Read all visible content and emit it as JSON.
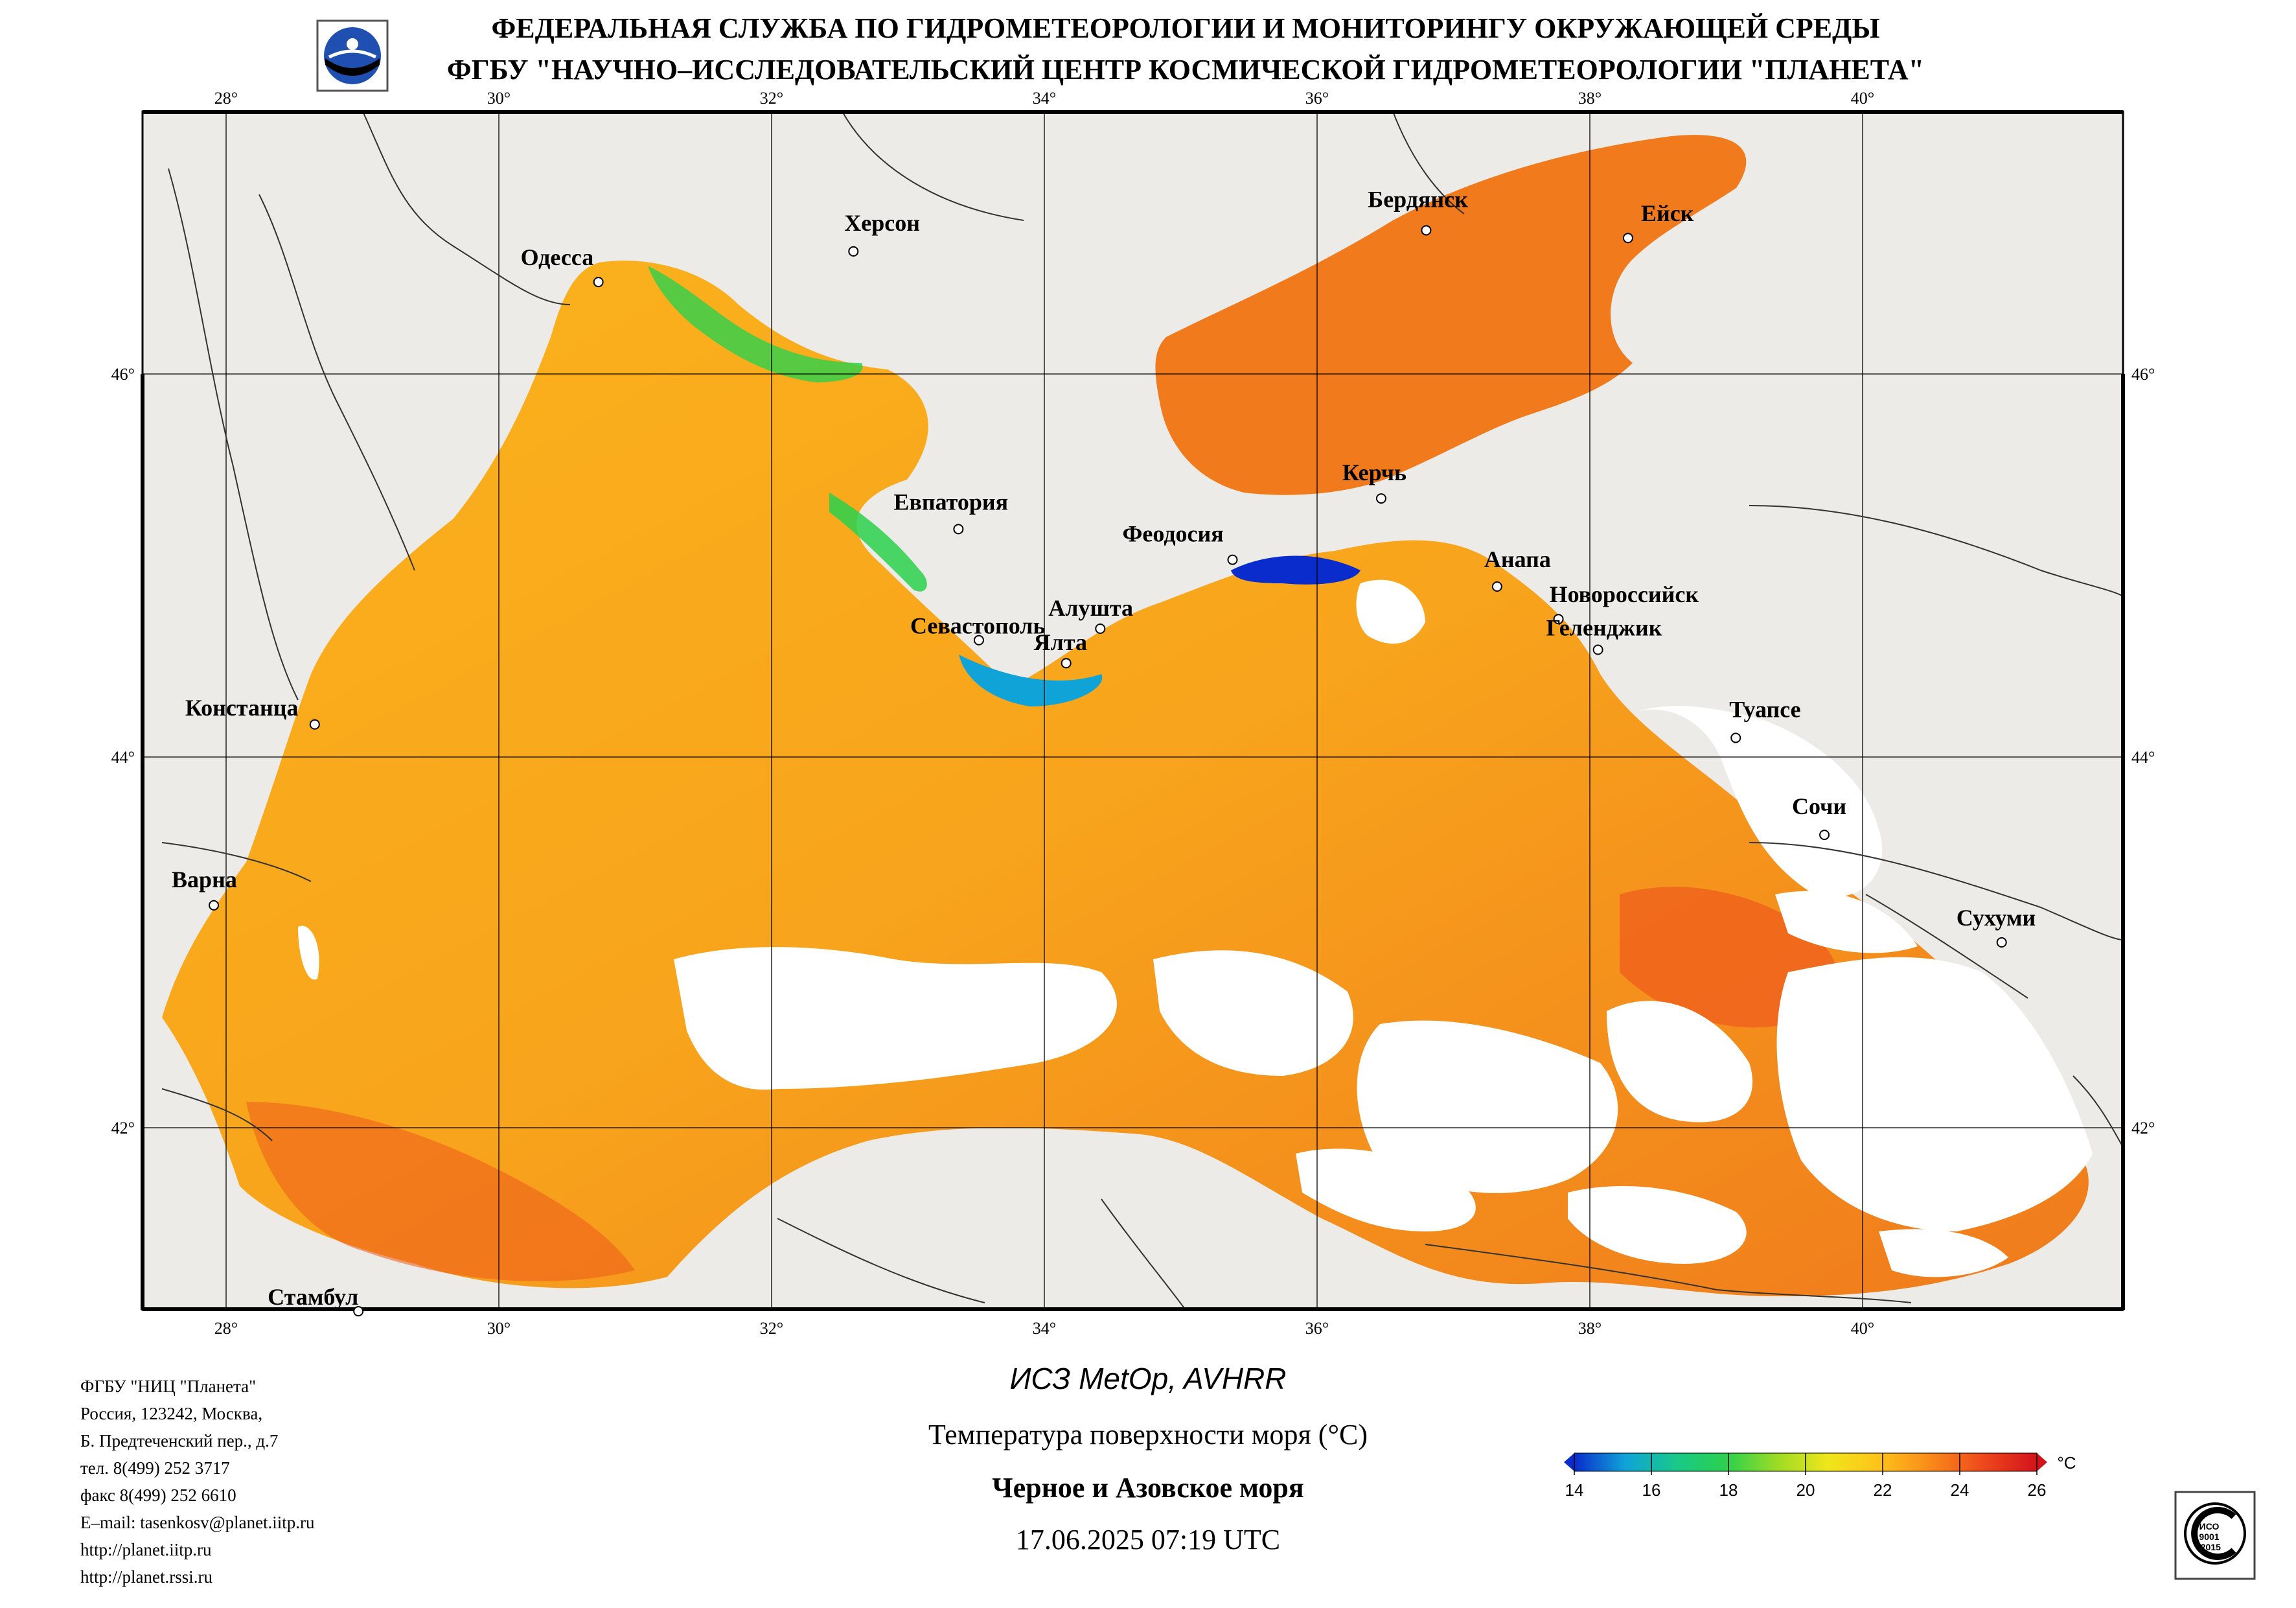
{
  "header": {
    "line1": "ФЕДЕРАЛЬНАЯ СЛУЖБА ПО ГИДРОМЕТЕОРОЛОГИИ И МОНИТОРИНГУ ОКРУЖАЮЩЕЙ СРЕДЫ",
    "line2": "ФГБУ \"НАУЧНО–ИССЛЕДОВАТЕЛЬСКИЙ ЦЕНТР КОСМИЧЕСКОЙ ГИДРОМЕТЕОРОЛОГИИ \"ПЛАНЕТА\"",
    "logo_icon": "planeta-logo-icon"
  },
  "map": {
    "lon_labels": [
      "28°",
      "30°",
      "32°",
      "34°",
      "36°",
      "38°",
      "40°"
    ],
    "lat_labels": [
      "46°",
      "44°",
      "42°"
    ],
    "colors": {
      "land": "#ecebe7",
      "cloud": "#ffffff",
      "border": "#333333",
      "sea_warm": "#f7a21c"
    },
    "cities": [
      {
        "name": "Одесса",
        "lon": 30.73,
        "lat": 46.48
      },
      {
        "name": "Херсон",
        "lon": 32.6,
        "lat": 46.64
      },
      {
        "name": "Бердянск",
        "lon": 36.8,
        "lat": 46.75
      },
      {
        "name": "Ейск",
        "lon": 38.28,
        "lat": 46.71
      },
      {
        "name": "Евпатория",
        "lon": 33.37,
        "lat": 45.19
      },
      {
        "name": "Керчь",
        "lon": 36.47,
        "lat": 45.35
      },
      {
        "name": "Феодосия",
        "lon": 35.38,
        "lat": 45.03
      },
      {
        "name": "Анапа",
        "lon": 37.32,
        "lat": 44.89
      },
      {
        "name": "Новороссийск",
        "lon": 37.77,
        "lat": 44.72
      },
      {
        "name": "Геленджик",
        "lon": 38.06,
        "lat": 44.56
      },
      {
        "name": "Алушта",
        "lon": 34.41,
        "lat": 44.67
      },
      {
        "name": "Севастополь",
        "lon": 33.52,
        "lat": 44.61
      },
      {
        "name": "Ялта",
        "lon": 34.16,
        "lat": 44.49
      },
      {
        "name": "Констанца",
        "lon": 28.65,
        "lat": 44.17
      },
      {
        "name": "Туапсе",
        "lon": 39.07,
        "lat": 44.1
      },
      {
        "name": "Сочи",
        "lon": 39.72,
        "lat": 43.58
      },
      {
        "name": "Варна",
        "lon": 27.91,
        "lat": 43.2
      },
      {
        "name": "Сухуми",
        "lon": 41.02,
        "lat": 43.0
      },
      {
        "name": "Стамбул",
        "lon": 28.97,
        "lat": 41.01
      }
    ]
  },
  "footer": {
    "org_lines": [
      "ФГБУ \"НИЦ \"Планета\"",
      "Россия, 123242, Москва,",
      "Б. Предтеченский пер., д.7",
      "тел. 8(499) 252 3717",
      "факс 8(499) 252 6610",
      "E–mail: tasenkosv@planet.iitp.ru",
      "http://planet.iitp.ru",
      "http://planet.rssi.ru"
    ],
    "satellite": "ИСЗ MetOp, AVHRR",
    "parameter": "Температура поверхности моря (°С)",
    "region": "Черное и Азовское моря",
    "datetime": "17.06.2025 07:19 UTC",
    "cert_icon": "iso-9001-certification-icon"
  },
  "colorbar": {
    "unit": "°С",
    "ticks": [
      "14",
      "16",
      "18",
      "20",
      "22",
      "24",
      "26"
    ],
    "range": [
      14,
      26
    ],
    "stops": [
      "#0a2ccc",
      "#10a3d8",
      "#19c889",
      "#2cd14c",
      "#9edc24",
      "#f0e61b",
      "#ffc21a",
      "#f98a1a",
      "#ef4a1c",
      "#d3121c"
    ]
  }
}
